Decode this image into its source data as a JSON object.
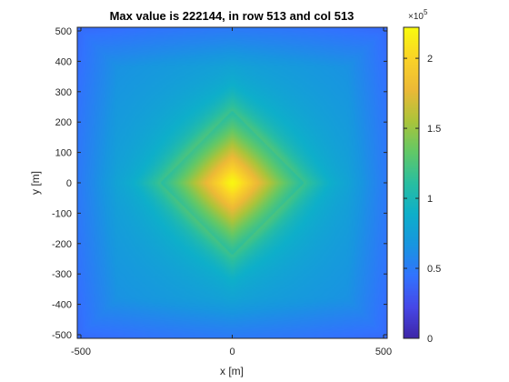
{
  "chart_data": {
    "type": "heatmap",
    "title": "Max value is 222144, in row 513 and col 513",
    "xlabel": "x [m]",
    "ylabel": "y [m]",
    "xlim": [
      -512,
      512
    ],
    "ylim": [
      -512,
      512
    ],
    "x_ticks": [
      -500,
      0,
      500
    ],
    "y_ticks": [
      -500,
      -400,
      -300,
      -200,
      -100,
      0,
      100,
      200,
      300,
      400,
      500
    ],
    "max_value": 222144,
    "max_location": {
      "row": 513,
      "col": 513,
      "x": 0,
      "y": 0
    },
    "colorbar": {
      "colormap": "parula",
      "range": [
        0,
        222144
      ],
      "exponent_label": "×10",
      "exponent_power": "5",
      "ticks": [
        0,
        0.5,
        1,
        1.5,
        2
      ],
      "tick_labels": [
        "0",
        "0.5",
        "1",
        "1.5",
        "2"
      ]
    },
    "grid": false,
    "pattern": "diamond-shaped peak centered at origin decaying outward"
  }
}
